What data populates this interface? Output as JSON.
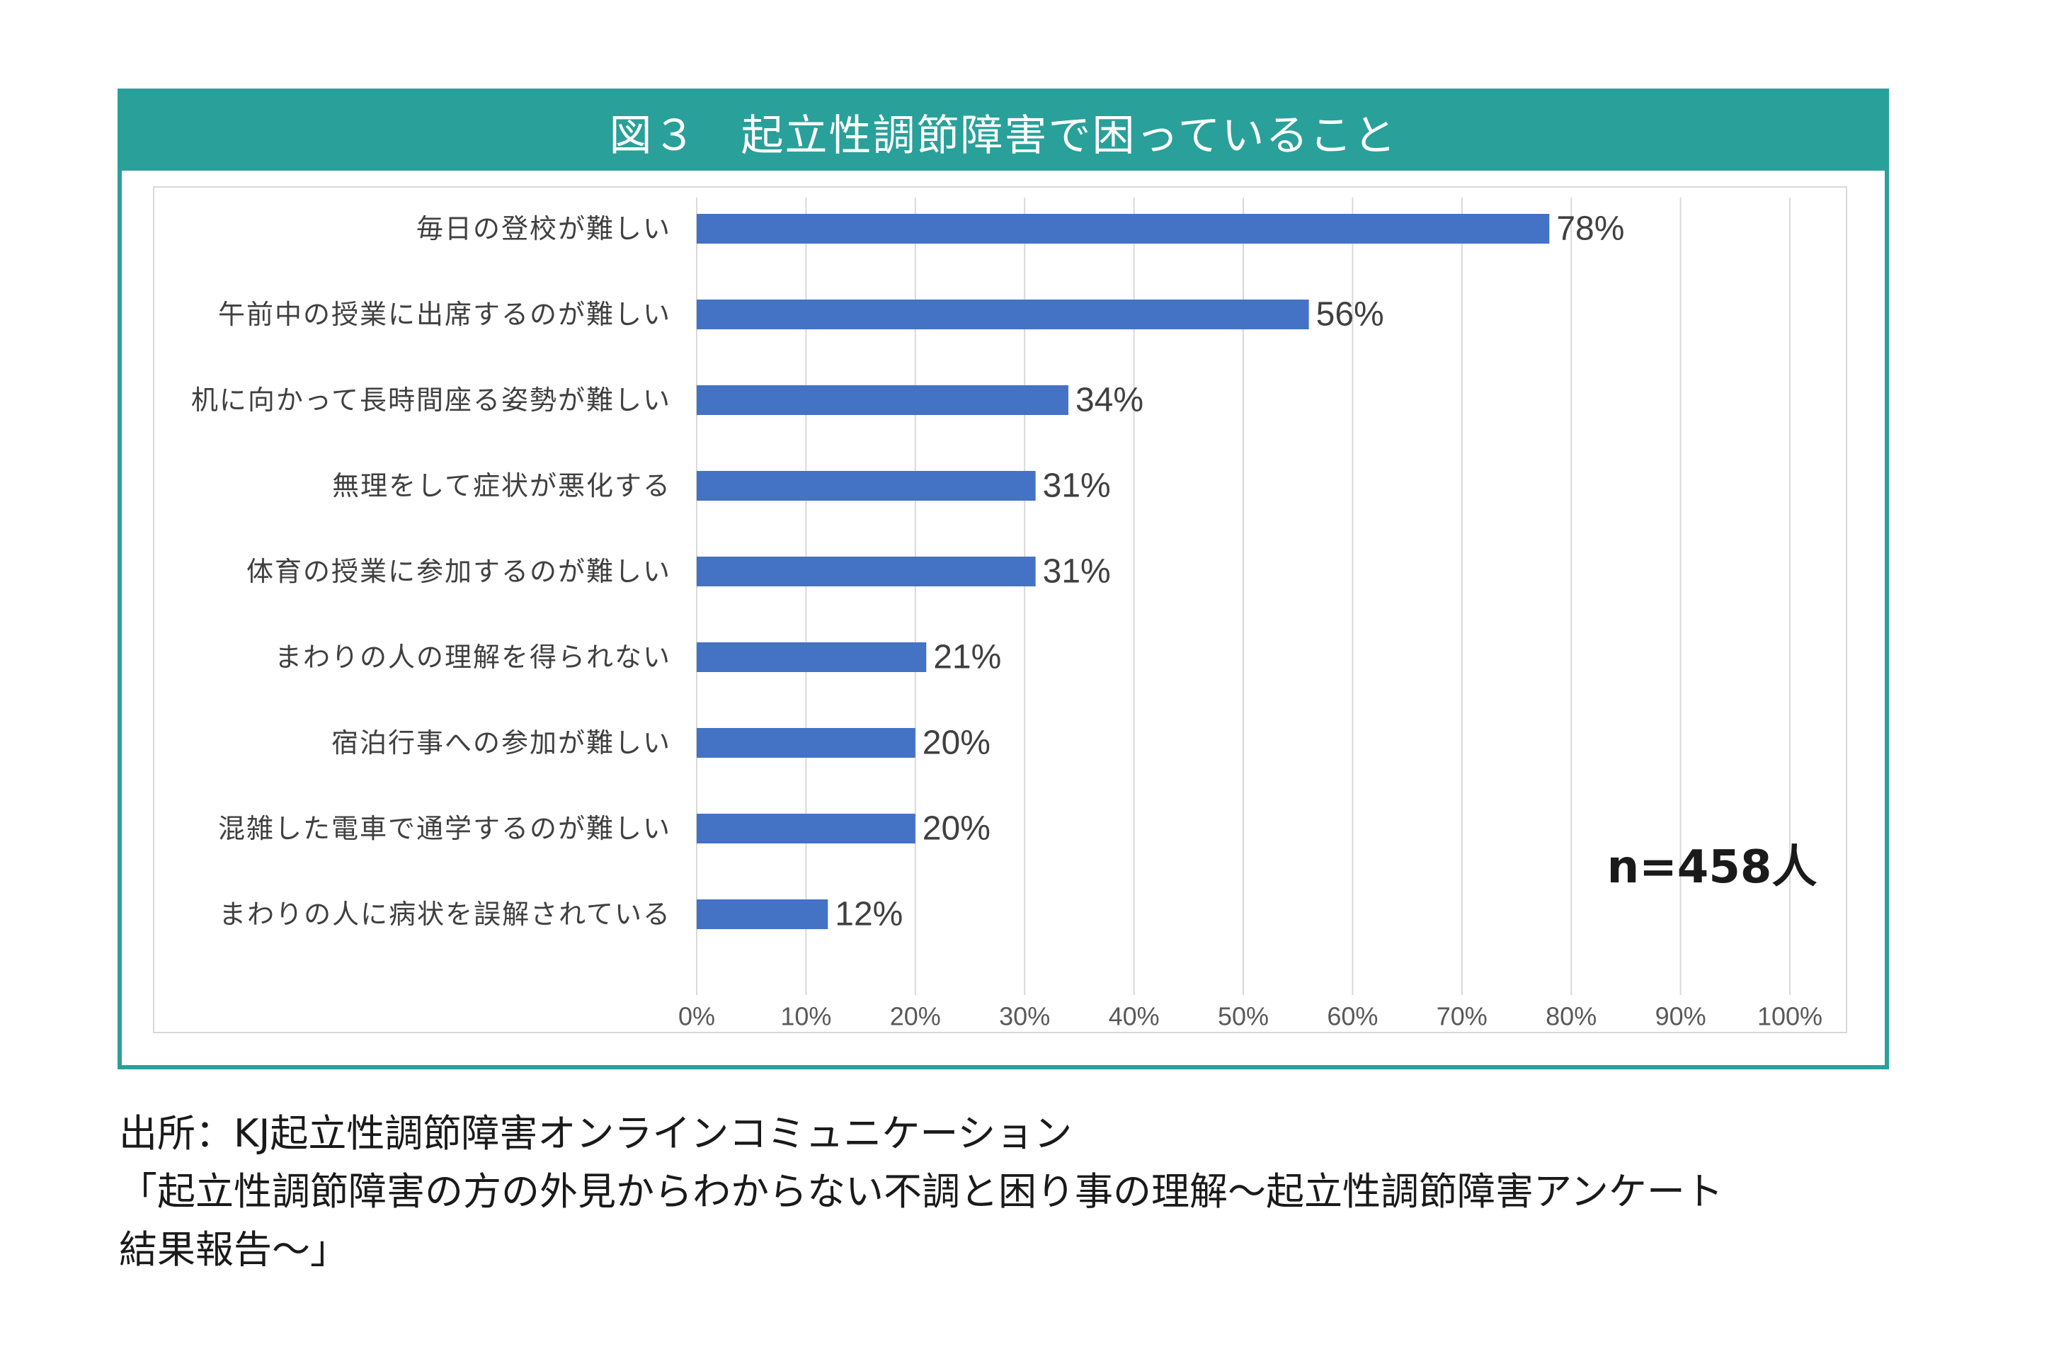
{
  "chart_data": {
    "type": "bar",
    "orientation": "horizontal",
    "title": "図３　起立性調節障害で困っていること",
    "categories": [
      "毎日の登校が難しい",
      "午前中の授業に出席するのが難しい",
      "机に向かって長時間座る姿勢が難しい",
      "無理をして症状が悪化する",
      "体育の授業に参加するのが難しい",
      "まわりの人の理解を得られない",
      "宿泊行事への参加が難しい",
      "混雑した電車で通学するのが難しい",
      "まわりの人に病状を誤解されている"
    ],
    "values": [
      78,
      56,
      34,
      31,
      31,
      21,
      20,
      20,
      12
    ],
    "value_labels": [
      "78%",
      "56%",
      "34%",
      "31%",
      "31%",
      "21%",
      "20%",
      "20%",
      "12%"
    ],
    "xlim": [
      0,
      100
    ],
    "x_ticks": [
      "0%",
      "10%",
      "20%",
      "30%",
      "40%",
      "50%",
      "60%",
      "70%",
      "80%",
      "90%",
      "100%"
    ],
    "grid": "vertical",
    "annotation": "n=458人",
    "bar_color": "#4472c4",
    "header_color": "#2aa09a"
  },
  "source": {
    "line1": "出所：KJ起立性調節障害オンラインコミュニケーション",
    "line2": "「起立性調節障害の方の外見からわからない不調と困り事の理解～起立性調節障害アンケート",
    "line3": "結果報告～」"
  }
}
